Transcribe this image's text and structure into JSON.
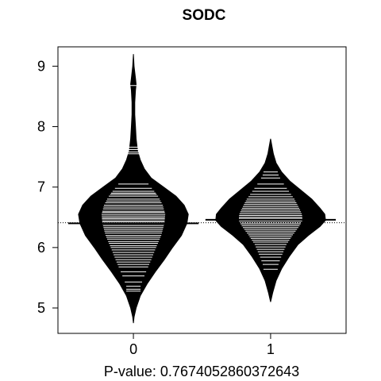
{
  "chart_data": {
    "type": "beanplot",
    "title": "SODC",
    "xlabel": "P-value: 0.7674052860372643",
    "ylabel": "",
    "categories": [
      "0",
      "1"
    ],
    "xlim": [
      -0.55,
      1.55
    ],
    "ylim": [
      4.58,
      9.32
    ],
    "yticks": [
      5,
      6,
      7,
      8,
      9
    ],
    "overall_mean": 6.41,
    "grid": false,
    "legend": "none",
    "colors": {
      "bean": "#000000",
      "line": "#ffffff",
      "background": "#ffffff"
    },
    "groups": [
      {
        "category": "0",
        "mean": 6.4,
        "density": [
          [
            4.75,
            0.0
          ],
          [
            4.85,
            0.01
          ],
          [
            5.0,
            0.04
          ],
          [
            5.2,
            0.1
          ],
          [
            5.4,
            0.2
          ],
          [
            5.6,
            0.32
          ],
          [
            5.8,
            0.45
          ],
          [
            6.0,
            0.57
          ],
          [
            6.2,
            0.7
          ],
          [
            6.4,
            0.78
          ],
          [
            6.55,
            0.8
          ],
          [
            6.7,
            0.74
          ],
          [
            6.85,
            0.62
          ],
          [
            7.0,
            0.44
          ],
          [
            7.15,
            0.26
          ],
          [
            7.3,
            0.16
          ],
          [
            7.45,
            0.1
          ],
          [
            7.6,
            0.06
          ],
          [
            7.8,
            0.04
          ],
          [
            8.0,
            0.03
          ],
          [
            8.2,
            0.02
          ],
          [
            8.4,
            0.02
          ],
          [
            8.6,
            0.03
          ],
          [
            8.7,
            0.04
          ],
          [
            8.8,
            0.03
          ],
          [
            9.0,
            0.01
          ],
          [
            9.2,
            0.0
          ]
        ],
        "points": [
          8.68,
          7.66,
          7.62,
          7.58,
          7.55,
          7.05,
          6.98,
          6.93,
          6.9,
          6.88,
          6.85,
          6.8,
          6.77,
          6.74,
          6.7,
          6.67,
          6.64,
          6.6,
          6.58,
          6.55,
          6.52,
          6.49,
          6.47,
          6.44,
          6.42,
          6.39,
          6.36,
          6.33,
          6.3,
          6.27,
          6.24,
          6.2,
          6.17,
          6.14,
          6.1,
          6.07,
          6.03,
          6.0,
          5.96,
          5.92,
          5.88,
          5.84,
          5.8,
          5.76,
          5.72,
          5.68,
          5.6,
          5.53,
          5.43,
          5.36,
          5.31,
          5.28
        ]
      },
      {
        "category": "1",
        "mean": 6.46,
        "density": [
          [
            5.1,
            0.0
          ],
          [
            5.25,
            0.03
          ],
          [
            5.45,
            0.08
          ],
          [
            5.65,
            0.16
          ],
          [
            5.85,
            0.27
          ],
          [
            6.05,
            0.4
          ],
          [
            6.2,
            0.55
          ],
          [
            6.35,
            0.72
          ],
          [
            6.45,
            0.8
          ],
          [
            6.55,
            0.79
          ],
          [
            6.65,
            0.72
          ],
          [
            6.8,
            0.6
          ],
          [
            6.95,
            0.44
          ],
          [
            7.1,
            0.28
          ],
          [
            7.25,
            0.16
          ],
          [
            7.4,
            0.08
          ],
          [
            7.55,
            0.04
          ],
          [
            7.8,
            0.0
          ]
        ],
        "points": [
          7.25,
          7.2,
          7.15,
          7.05,
          6.98,
          6.93,
          6.88,
          6.84,
          6.8,
          6.77,
          6.74,
          6.71,
          6.68,
          6.65,
          6.62,
          6.59,
          6.56,
          6.53,
          6.5,
          6.48,
          6.46,
          6.44,
          6.41,
          6.39,
          6.36,
          6.33,
          6.3,
          6.27,
          6.24,
          6.21,
          6.18,
          6.15,
          6.12,
          6.09,
          6.05,
          6.01,
          5.97,
          5.93,
          5.89,
          5.84,
          5.78,
          5.72,
          5.64
        ]
      }
    ]
  }
}
